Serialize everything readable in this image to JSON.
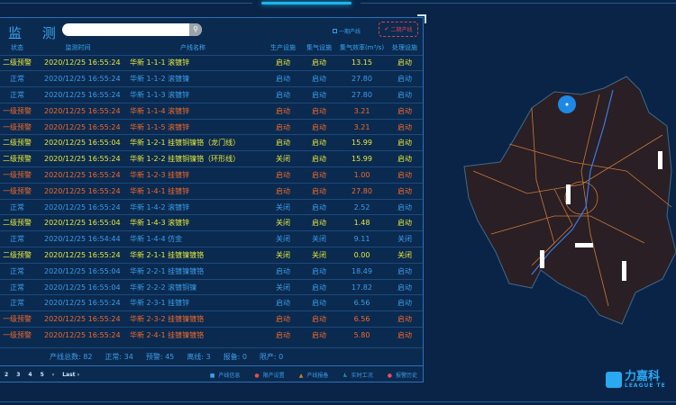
{
  "panel": {
    "title": "监 测",
    "search_placeholder": "",
    "checkbox_phase1": "一期产线",
    "button_phase2": "二期产线"
  },
  "colors": {
    "normal": "#3a9ee8",
    "warn2": "#e6ea3a",
    "warn1": "#f06a2a",
    "background": "#0a2447"
  },
  "table": {
    "headers": [
      "状态",
      "监测时间",
      "产线名称",
      "生产设施",
      "集气设施",
      "集气效率(m³/s)",
      "处理设施"
    ],
    "rows": [
      {
        "level": "warn2",
        "status": "二级预警",
        "time": "2020/12/25 16:55:24",
        "name": "华新 1-1-1 滚镀锌",
        "prod": "启动",
        "gas": "启动",
        "eff": "13.15",
        "treat": "启动"
      },
      {
        "level": "normal",
        "status": "正常",
        "time": "2020/12/25 16:55:24",
        "name": "华新 1-1-2 滚镀镍",
        "prod": "启动",
        "gas": "启动",
        "eff": "27.80",
        "treat": "启动"
      },
      {
        "level": "normal",
        "status": "正常",
        "time": "2020/12/25 16:55:24",
        "name": "华新 1-1-3 滚镀锌",
        "prod": "启动",
        "gas": "启动",
        "eff": "27.80",
        "treat": "启动"
      },
      {
        "level": "warn1",
        "status": "一级预警",
        "time": "2020/12/25 16:55:24",
        "name": "华新 1-1-4 滚镀锌",
        "prod": "启动",
        "gas": "启动",
        "eff": "3.21",
        "treat": "启动"
      },
      {
        "level": "warn1",
        "status": "一级预警",
        "time": "2020/12/25 16:55:24",
        "name": "华新 1-1-5 滚镀锌",
        "prod": "启动",
        "gas": "启动",
        "eff": "3.21",
        "treat": "启动"
      },
      {
        "level": "warn2",
        "status": "二级预警",
        "time": "2020/12/25 16:55:04",
        "name": "华新 1-2-1 挂镀铜镍铬（龙门线）",
        "prod": "启动",
        "gas": "启动",
        "eff": "15.99",
        "treat": "启动"
      },
      {
        "level": "warn2",
        "status": "二级预警",
        "time": "2020/12/25 16:55:24",
        "name": "华新 1-2-2 挂镀铜镍铬（环形线）",
        "prod": "关闭",
        "gas": "启动",
        "eff": "15.99",
        "treat": "启动"
      },
      {
        "level": "warn1",
        "status": "一级预警",
        "time": "2020/12/25 16:55:24",
        "name": "华新 1-2-3 挂镀锌",
        "prod": "启动",
        "gas": "启动",
        "eff": "1.00",
        "treat": "启动"
      },
      {
        "level": "warn1",
        "status": "一级预警",
        "time": "2020/12/25 16:55:24",
        "name": "华新 1-4-1 挂镀锌",
        "prod": "启动",
        "gas": "启动",
        "eff": "27.80",
        "treat": "启动"
      },
      {
        "level": "normal",
        "status": "正常",
        "time": "2020/12/25 16:55:24",
        "name": "华新 1-4-2 滚镀锌",
        "prod": "关闭",
        "gas": "启动",
        "eff": "2.52",
        "treat": "启动"
      },
      {
        "level": "warn2",
        "status": "二级预警",
        "time": "2020/12/25 16:55:04",
        "name": "华新 1-4-3 滚镀锌",
        "prod": "关闭",
        "gas": "启动",
        "eff": "1.48",
        "treat": "启动"
      },
      {
        "level": "normal",
        "status": "正常",
        "time": "2020/12/25 16:54:44",
        "name": "华新 1-4-4 仿金",
        "prod": "关闭",
        "gas": "关闭",
        "eff": "9.11",
        "treat": "关闭"
      },
      {
        "level": "warn2",
        "status": "二级预警",
        "time": "2020/12/25 16:55:24",
        "name": "华新 2-1-1 挂镀镍镀铬",
        "prod": "关闭",
        "gas": "关闭",
        "eff": "0.00",
        "treat": "关闭"
      },
      {
        "level": "normal",
        "status": "正常",
        "time": "2020/12/25 16:55:04",
        "name": "华新 2-2-1 挂镀镍镀铬",
        "prod": "启动",
        "gas": "启动",
        "eff": "18.49",
        "treat": "启动"
      },
      {
        "level": "normal",
        "status": "正常",
        "time": "2020/12/25 16:55:04",
        "name": "华新 2-2-2 滚镀铜镍",
        "prod": "关闭",
        "gas": "启动",
        "eff": "17.82",
        "treat": "启动"
      },
      {
        "level": "normal",
        "status": "正常",
        "time": "2020/12/25 16:55:24",
        "name": "华新 2-3-1 挂镀锌",
        "prod": "启动",
        "gas": "启动",
        "eff": "6.56",
        "treat": "启动"
      },
      {
        "level": "warn1",
        "status": "一级预警",
        "time": "2020/12/25 16:55:24",
        "name": "华新 2-3-2 挂镀镍镀铬",
        "prod": "启动",
        "gas": "启动",
        "eff": "6.56",
        "treat": "启动"
      },
      {
        "level": "warn1",
        "status": "一级预警",
        "time": "2020/12/25 16:55:24",
        "name": "华新 2-4-1 挂镀镍镀铬",
        "prod": "启动",
        "gas": "启动",
        "eff": "5.80",
        "treat": "启动"
      }
    ]
  },
  "summary": [
    "产线总数: 82",
    "正常: 34",
    "预警: 45",
    "离线: 3",
    "报备: 0",
    "限产: 0"
  ],
  "pager": [
    "2",
    "3",
    "4",
    "5",
    "›",
    "Last ›"
  ],
  "legend": [
    {
      "icon": "info-square-icon",
      "color": "#3a9ee8",
      "label": "产线信息"
    },
    {
      "icon": "limit-circle-icon",
      "color": "#e84a4a",
      "label": "限产设置"
    },
    {
      "icon": "warning-triangle-icon",
      "color": "#c87a3a",
      "label": "产线报备"
    },
    {
      "icon": "realtime-person-icon",
      "color": "#3ac8e8",
      "label": "实时工况"
    },
    {
      "icon": "alarm-history-icon",
      "color": "#e84a6a",
      "label": "报警历史"
    }
  ],
  "logo": {
    "name": "力嘉科",
    "sub": "LEAGUE TE"
  }
}
